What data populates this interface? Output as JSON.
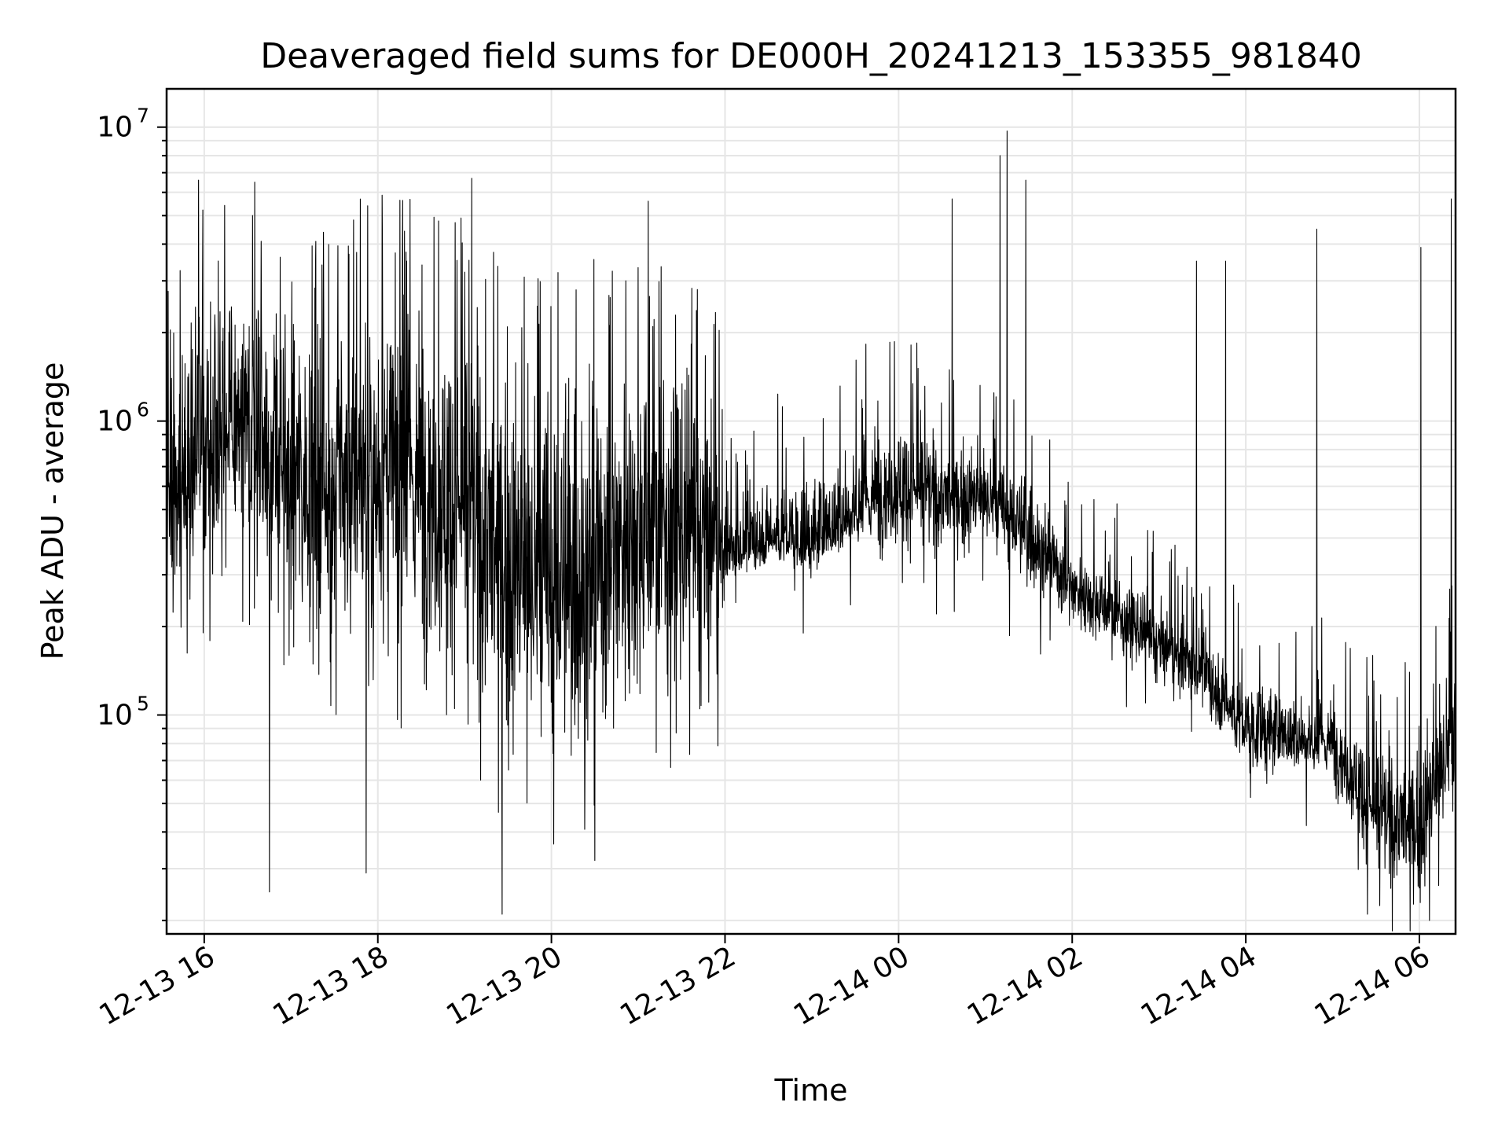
{
  "chart_data": {
    "type": "line",
    "title": "Deaveraged field sums for DE000H_20241213_153355_981840",
    "xlabel": "Time",
    "ylabel": "Peak ADU - average",
    "y_scale": "log",
    "ylim": [
      18000,
      13500000
    ],
    "xlim": [
      "2024-12-13 15:34",
      "2024-12-14 06:25"
    ],
    "grid": true,
    "legend": "none",
    "line_color": "#000000",
    "x_ticks": [
      "12-13 16",
      "12-13 18",
      "12-13 20",
      "12-13 22",
      "12-14 00",
      "12-14 02",
      "12-14 04",
      "12-14 06"
    ],
    "y_ticks": [
      {
        "base": "10",
        "exp": "5",
        "value": 100000
      },
      {
        "base": "10",
        "exp": "6",
        "value": 1000000
      },
      {
        "base": "10",
        "exp": "7",
        "value": 10000000
      }
    ],
    "series": [
      {
        "envelope": [
          {
            "x": "2024-12-13 15:34",
            "median": 550000,
            "low": 200000,
            "high": 1900000
          },
          {
            "x": "2024-12-13 16:00",
            "median": 900000,
            "low": 280000,
            "high": 3500000
          },
          {
            "x": "2024-12-13 16:30",
            "median": 950000,
            "low": 300000,
            "high": 3200000
          },
          {
            "x": "2024-12-13 17:00",
            "median": 650000,
            "low": 170000,
            "high": 3000000
          },
          {
            "x": "2024-12-13 17:30",
            "median": 600000,
            "low": 150000,
            "high": 3000000
          },
          {
            "x": "2024-12-13 18:00",
            "median": 650000,
            "low": 130000,
            "high": 3400000
          },
          {
            "x": "2024-12-13 18:30",
            "median": 600000,
            "low": 130000,
            "high": 3200000
          },
          {
            "x": "2024-12-13 19:00",
            "median": 500000,
            "low": 120000,
            "high": 2800000
          },
          {
            "x": "2024-12-13 19:30",
            "median": 300000,
            "low": 60000,
            "high": 2000000
          },
          {
            "x": "2024-12-13 20:00",
            "median": 260000,
            "low": 55000,
            "high": 2000000
          },
          {
            "x": "2024-12-13 20:30",
            "median": 300000,
            "low": 60000,
            "high": 2200000
          },
          {
            "x": "2024-12-13 21:00",
            "median": 450000,
            "low": 100000,
            "high": 2200000
          },
          {
            "x": "2024-12-13 21:30",
            "median": 420000,
            "low": 90000,
            "high": 1900000
          },
          {
            "x": "2024-12-13 21:55",
            "median": 350000,
            "low": 80000,
            "high": 1500000
          },
          {
            "x": "2024-12-13 22:00",
            "median": 330000,
            "low": 280000,
            "high": 600000
          },
          {
            "x": "2024-12-13 22:30",
            "median": 400000,
            "low": 310000,
            "high": 700000
          },
          {
            "x": "2024-12-13 23:00",
            "median": 380000,
            "low": 300000,
            "high": 700000
          },
          {
            "x": "2024-12-13 23:30",
            "median": 500000,
            "low": 330000,
            "high": 1000000
          },
          {
            "x": "2024-12-14 00:00",
            "median": 600000,
            "low": 350000,
            "high": 1200000
          },
          {
            "x": "2024-12-14 00:30",
            "median": 550000,
            "low": 340000,
            "high": 900000
          },
          {
            "x": "2024-12-14 01:00",
            "median": 550000,
            "low": 330000,
            "high": 850000
          },
          {
            "x": "2024-12-14 01:30",
            "median": 420000,
            "low": 250000,
            "high": 700000
          },
          {
            "x": "2024-12-14 02:00",
            "median": 270000,
            "low": 190000,
            "high": 400000
          },
          {
            "x": "2024-12-14 02:30",
            "median": 220000,
            "low": 160000,
            "high": 320000
          },
          {
            "x": "2024-12-14 03:00",
            "median": 170000,
            "low": 120000,
            "high": 250000
          },
          {
            "x": "2024-12-14 03:30",
            "median": 140000,
            "low": 100000,
            "high": 210000
          },
          {
            "x": "2024-12-14 04:00",
            "median": 90000,
            "low": 60000,
            "high": 140000
          },
          {
            "x": "2024-12-14 04:30",
            "median": 85000,
            "low": 60000,
            "high": 130000
          },
          {
            "x": "2024-12-14 05:00",
            "median": 80000,
            "low": 55000,
            "high": 120000
          },
          {
            "x": "2024-12-14 05:30",
            "median": 45000,
            "low": 28000,
            "high": 90000
          },
          {
            "x": "2024-12-14 06:00",
            "median": 40000,
            "low": 22000,
            "high": 90000
          },
          {
            "x": "2024-12-14 06:25",
            "median": 90000,
            "low": 40000,
            "high": 200000
          }
        ],
        "spikes": [
          {
            "x": "2024-12-13 15:56",
            "value": 6600000
          },
          {
            "x": "2024-12-13 16:35",
            "value": 6500000
          },
          {
            "x": "2024-12-13 16:45",
            "value": 25000
          },
          {
            "x": "2024-12-13 17:53",
            "value": 5400000
          },
          {
            "x": "2024-12-13 17:52",
            "value": 29000
          },
          {
            "x": "2024-12-13 19:05",
            "value": 6700000
          },
          {
            "x": "2024-12-13 19:26",
            "value": 21000
          },
          {
            "x": "2024-12-13 20:30",
            "value": 32000
          },
          {
            "x": "2024-12-13 21:07",
            "value": 5600000
          },
          {
            "x": "2024-12-13 22:54",
            "value": 190000
          },
          {
            "x": "2024-12-14 00:37",
            "value": 5700000
          },
          {
            "x": "2024-12-14 01:15",
            "value": 9700000
          },
          {
            "x": "2024-12-14 01:10",
            "value": 8000000
          },
          {
            "x": "2024-12-14 01:28",
            "value": 6600000
          },
          {
            "x": "2024-12-14 03:26",
            "value": 3500000
          },
          {
            "x": "2024-12-14 03:46",
            "value": 3500000
          },
          {
            "x": "2024-12-14 04:49",
            "value": 4500000
          },
          {
            "x": "2024-12-14 05:24",
            "value": 21000
          },
          {
            "x": "2024-12-14 06:01",
            "value": 3900000
          },
          {
            "x": "2024-12-14 06:07",
            "value": 20000
          },
          {
            "x": "2024-12-14 06:22",
            "value": 5700000
          }
        ]
      }
    ]
  }
}
